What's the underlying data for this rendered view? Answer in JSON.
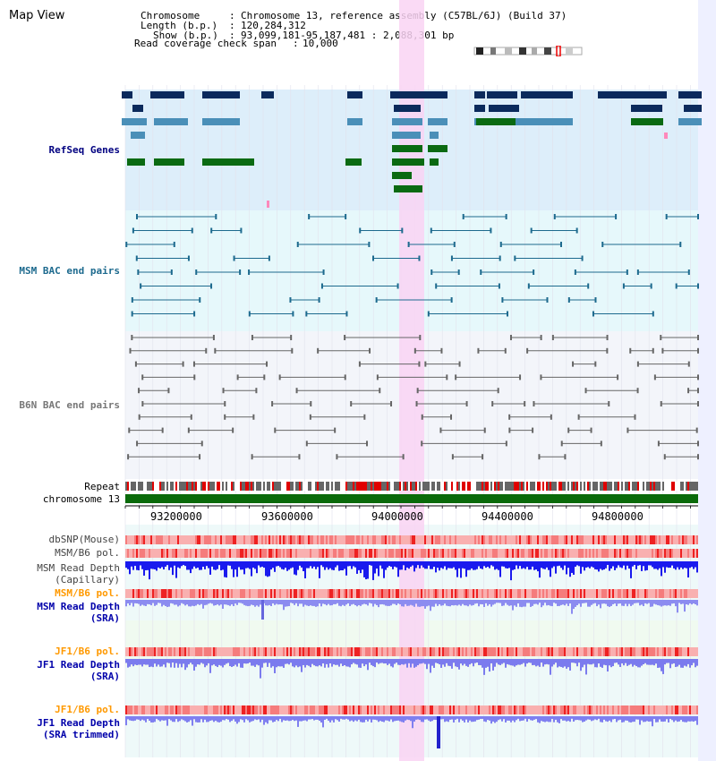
{
  "title": "Map View",
  "info": {
    "chromosome_label": "Chromosome",
    "chromosome_value": "Chromosome 13, reference assembly (C57BL/6J) (Build 37)",
    "length_label": "Length (b.p.)",
    "length_value": "120,284,312",
    "show_label": "Show (b.p.)",
    "show_value": "93,099,181-95,187,481 : 2,088,301 bp",
    "read_label": "Read coverage check span",
    "read_value": "10,000"
  },
  "tracks": {
    "refseq": "RefSeq Genes",
    "msm_bac": "MSM BAC end pairs",
    "b6n_bac": "B6N BAC end pairs",
    "repeat": "Repeat",
    "chrom": "chromosome 13",
    "dbsnp": "dbSNP(Mouse)",
    "msm_pol": "MSM/B6 pol.",
    "msm_depth_cap_1": "MSM Read Depth",
    "msm_depth_cap_2": "(Capillary)",
    "msm_pol_sra": "MSM/B6 pol.",
    "msm_depth_sra_1": "MSM Read Depth",
    "msm_depth_sra_2": "(SRA)",
    "jf1_pol": "JF1/B6 pol.",
    "jf1_depth_1": "JF1 Read Depth",
    "jf1_depth_2": "(SRA)",
    "jf1_pol_trim": "JF1/B6 pol.",
    "jf1_trim_1": "JF1 Read Depth",
    "jf1_trim_2": "(SRA trimmed)"
  },
  "ruler": {
    "ticks": [
      "93200000",
      "93600000",
      "94000000",
      "94400000",
      "94800000"
    ]
  },
  "colors": {
    "refseq_bg": "#ddeefa",
    "msm_bg": "#e6f8fb",
    "b6n_bg": "#f3f5fa",
    "highlight": "#f9d4f3",
    "gene_dark": "#0b2a5c",
    "gene_mid": "#4a8fb8",
    "gene_green": "#0a6a12",
    "msm_line": "#1d6a8e",
    "b6n_line": "#666666",
    "chrom_bar": "#0a6a0a",
    "depth_blue": "#1a1aee",
    "depth_light": "#7b7bee"
  }
}
